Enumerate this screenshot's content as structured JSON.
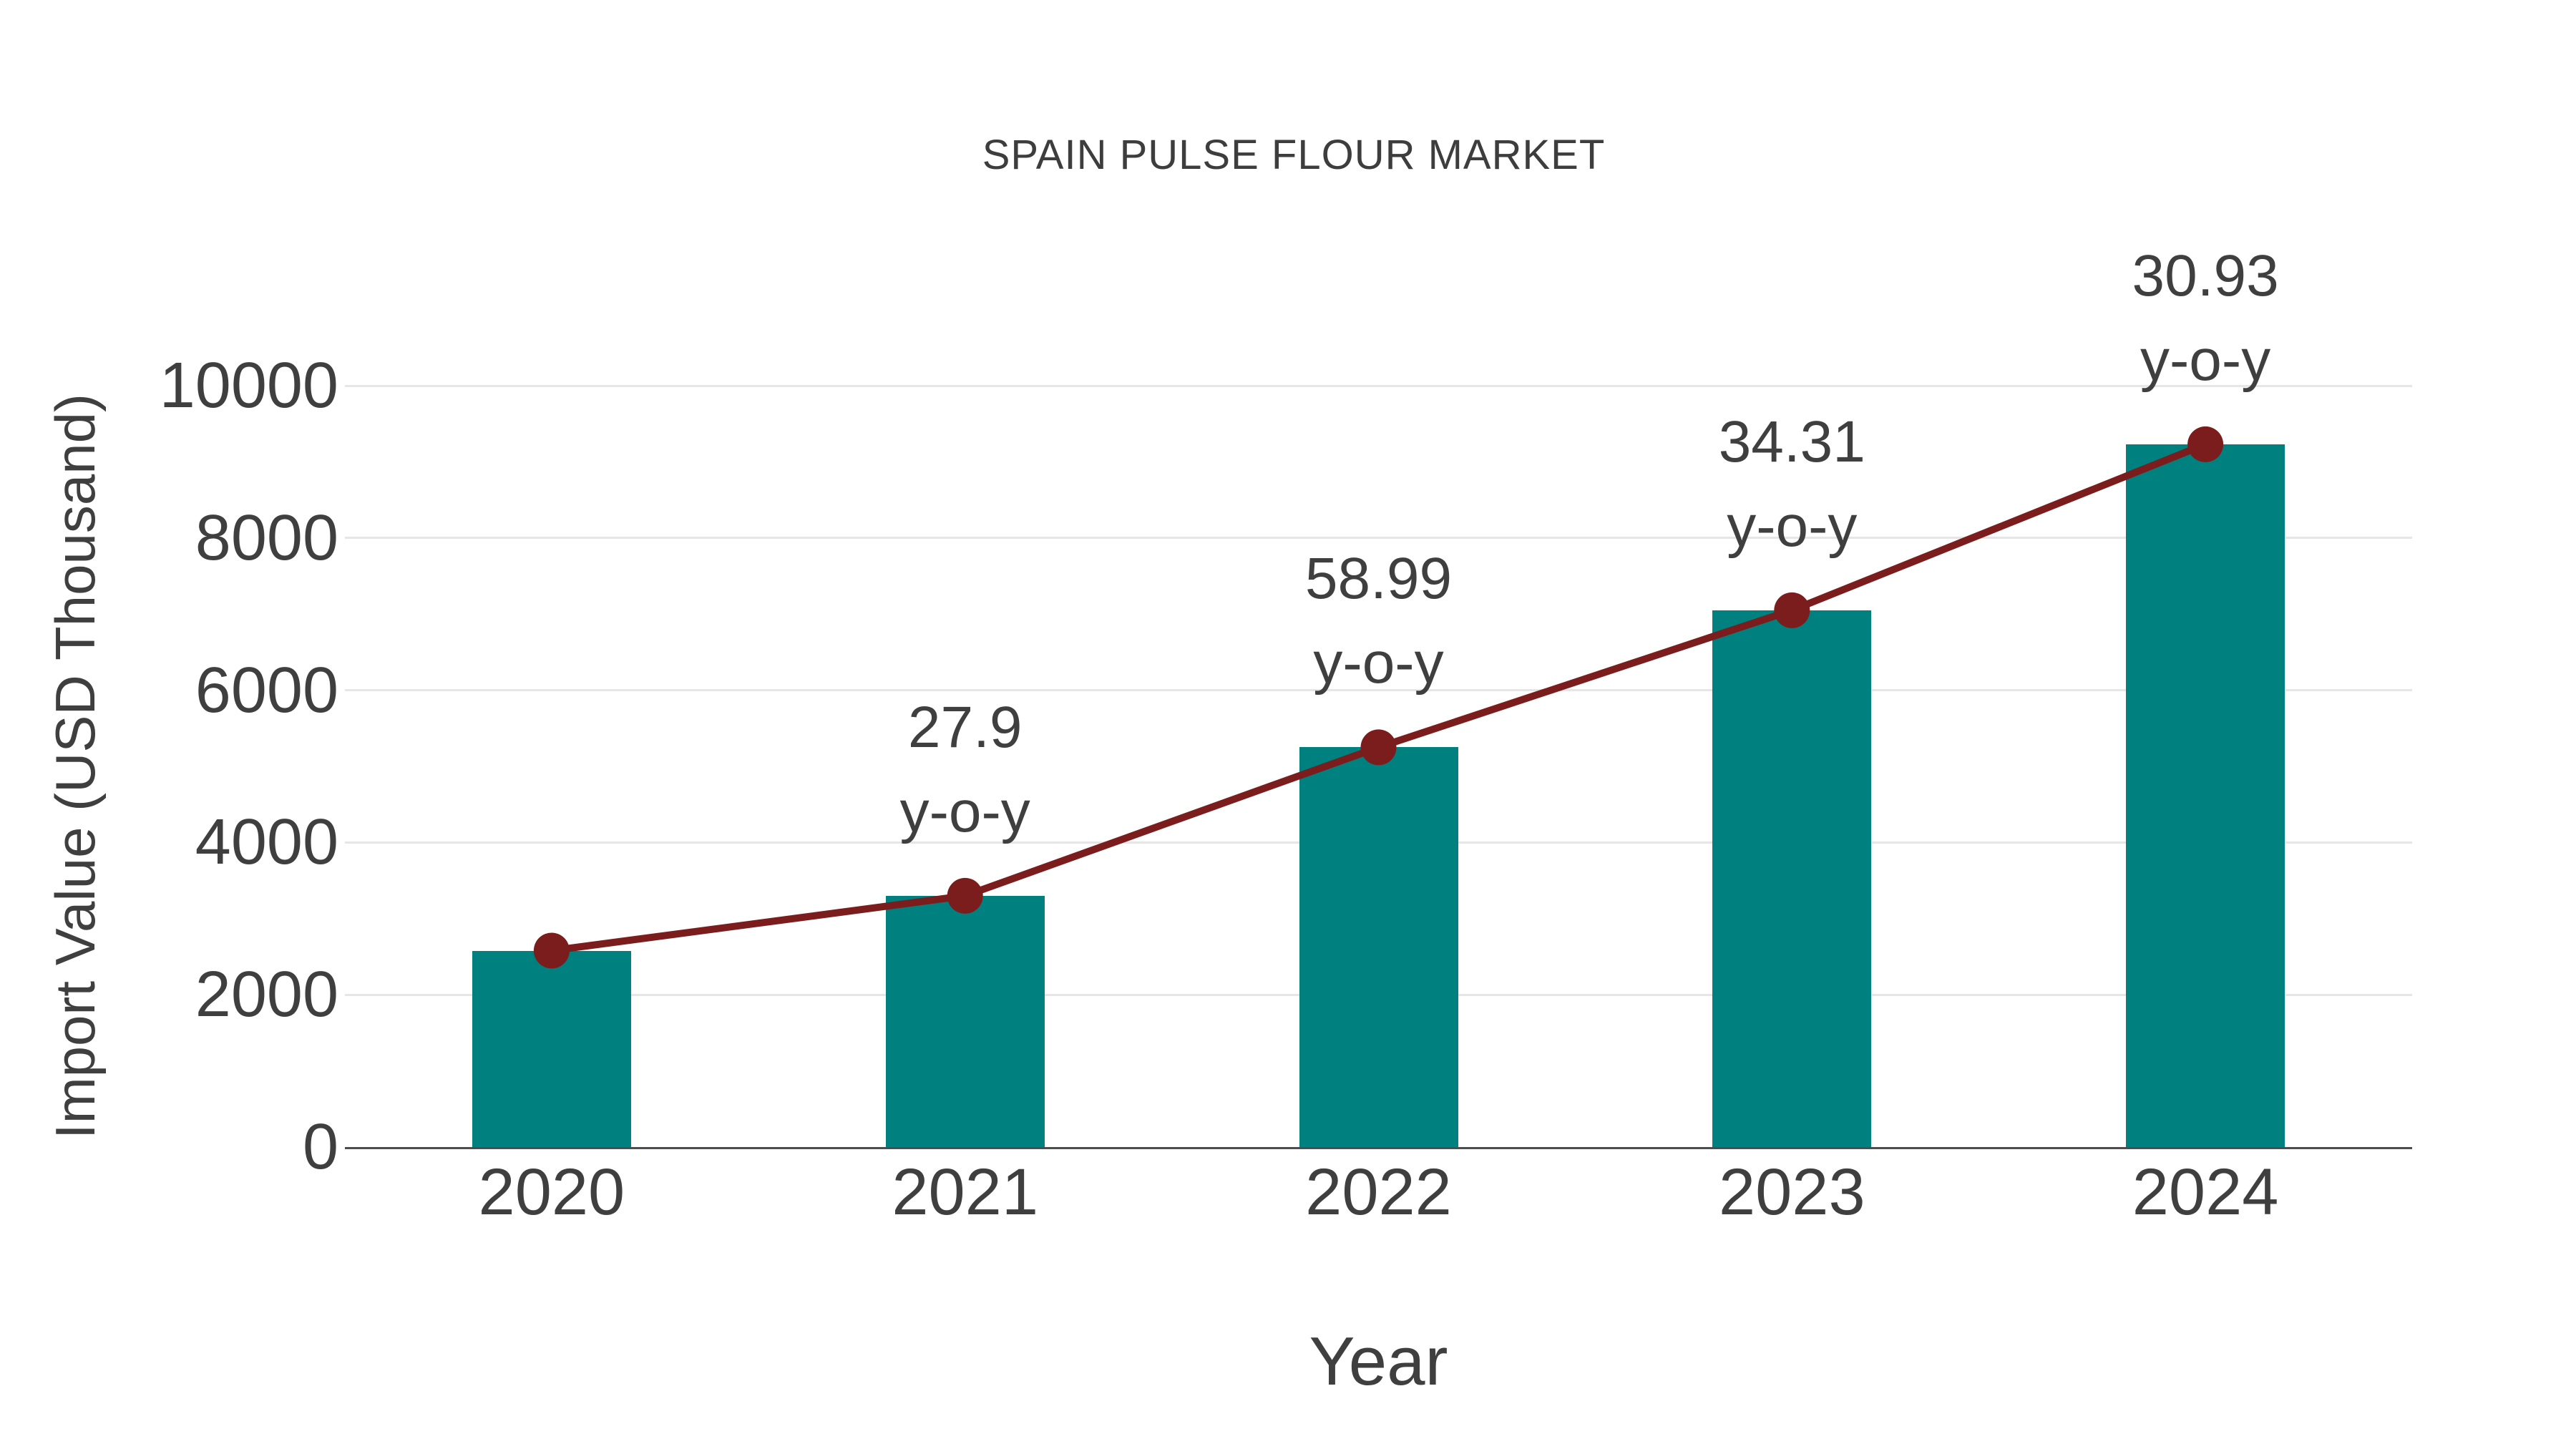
{
  "colors": {
    "background": "#FFFFFF",
    "bar": "#00807E",
    "line": "#7B1D1D",
    "marker": "#7B1D1D",
    "text": "#3F3F3F",
    "title_text": "#3D3D3D",
    "grid": "#E6E6E6",
    "axis": "#4D4D4D"
  },
  "chart_data": {
    "type": "bar",
    "subtype": "bar-with-line-overlay",
    "title": "SPAIN PULSE FLOUR MARKET",
    "xlabel": "Year",
    "ylabel": "Import Value (USD Thousand)",
    "categories": [
      "2020",
      "2021",
      "2022",
      "2023",
      "2024"
    ],
    "series": [
      {
        "name": "Import Value (USD Thousand)",
        "render": "bar",
        "values": [
          2580,
          3300,
          5250,
          7050,
          9230
        ]
      },
      {
        "name": "y-o-y growth (%)",
        "render": "line-markers-on-bar-tops",
        "values": [
          null,
          27.9,
          58.99,
          34.31,
          30.93
        ]
      }
    ],
    "annotations": [
      {
        "category": "2021",
        "line1": "27.9",
        "line2": "y-o-y"
      },
      {
        "category": "2022",
        "line1": "58.99",
        "line2": "y-o-y"
      },
      {
        "category": "2023",
        "line1": "34.31",
        "line2": "y-o-y"
      },
      {
        "category": "2024",
        "line1": "30.93",
        "line2": "y-o-y"
      }
    ],
    "ylim": [
      0,
      10000
    ],
    "yticks": [
      0,
      2000,
      4000,
      6000,
      8000,
      10000
    ],
    "grid": true,
    "legend_position": "none"
  }
}
